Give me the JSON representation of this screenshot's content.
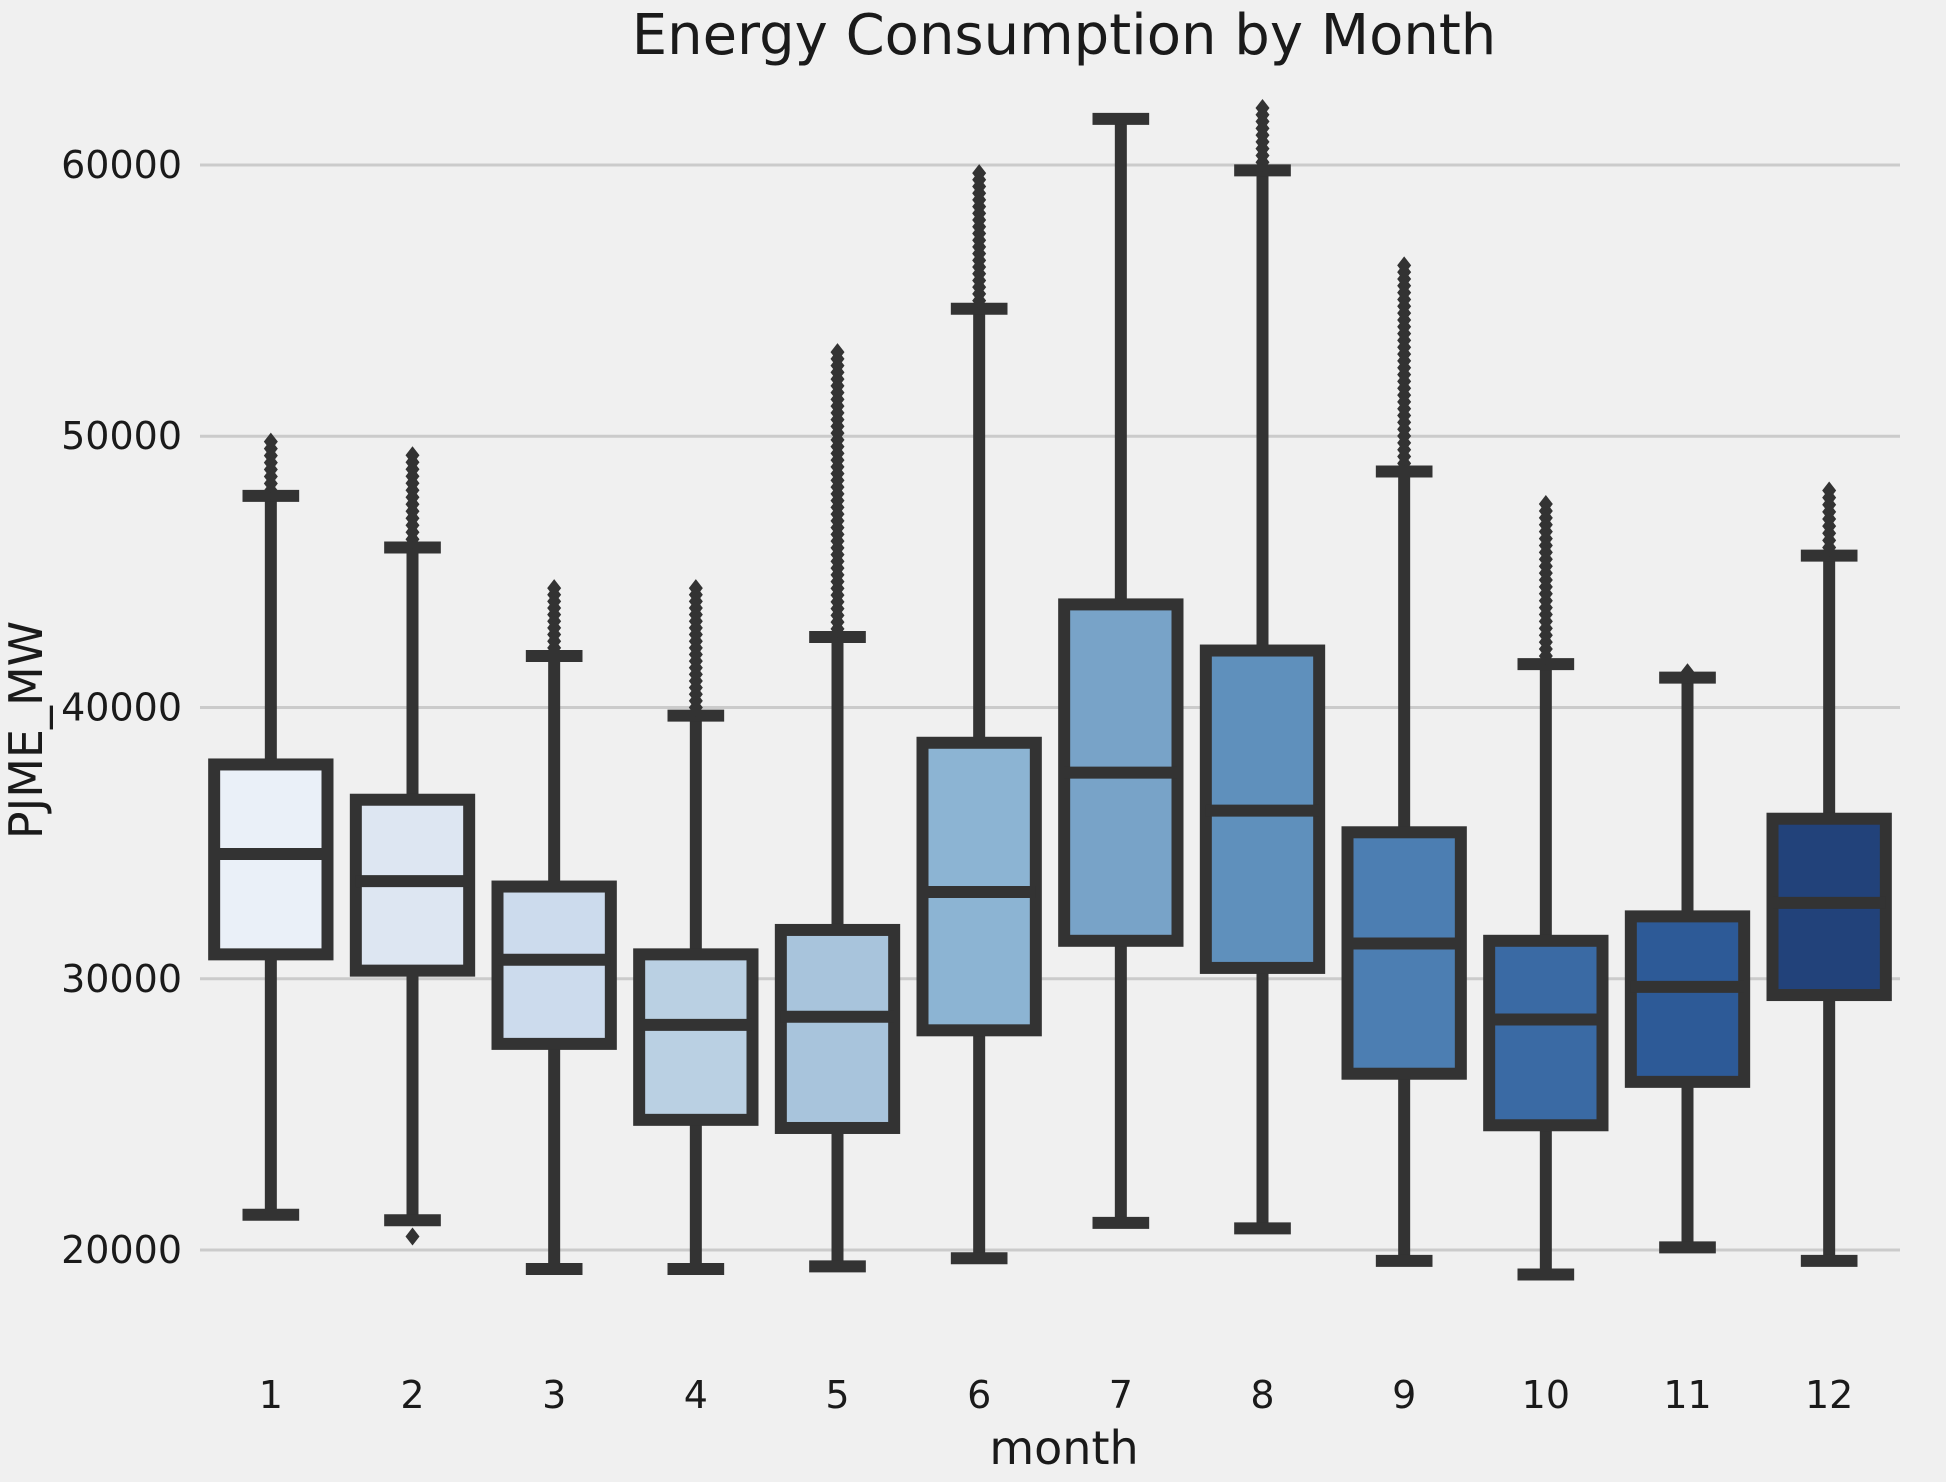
{
  "chart_data": {
    "type": "box",
    "title": "Energy Consumption by Month",
    "xlabel": "month",
    "ylabel": "PJME_MW",
    "ylim": [
      16500,
      63500
    ],
    "yticks": [
      20000,
      30000,
      40000,
      50000,
      60000
    ],
    "yticklabels": [
      "20000",
      "30000",
      "40000",
      "50000",
      "60000"
    ],
    "grid": "horizontal",
    "categories": [
      "1",
      "2",
      "3",
      "4",
      "5",
      "6",
      "7",
      "8",
      "9",
      "10",
      "11",
      "12"
    ],
    "colors": [
      "#eaf0f8",
      "#dde6f2",
      "#ccdbed",
      "#bad0e3",
      "#a8c4dc",
      "#8cb4d3",
      "#78a3c8",
      "#5f90bc",
      "#4c7eb2",
      "#3a6aa4",
      "#2d5a97",
      "#22427a"
    ],
    "edge_color": "#333333",
    "boxes": [
      {
        "month": "1",
        "whislo": 21300,
        "q1": 30900,
        "med": 34600,
        "q3": 37900,
        "whishi": 47800,
        "fliers_range": [
          48000,
          49800
        ]
      },
      {
        "month": "2",
        "whislo": 21100,
        "q1": 30300,
        "med": 33600,
        "q3": 36600,
        "whishi": 45900,
        "fliers_range": [
          46200,
          49300
        ],
        "fliers_low": [
          20500
        ]
      },
      {
        "month": "3",
        "whislo": 19300,
        "q1": 27600,
        "med": 30700,
        "q3": 33400,
        "whishi": 41900,
        "fliers_range": [
          42200,
          44400
        ]
      },
      {
        "month": "4",
        "whislo": 19300,
        "q1": 24800,
        "med": 28300,
        "q3": 30900,
        "whishi": 39700,
        "fliers_range": [
          40000,
          44400
        ]
      },
      {
        "month": "5",
        "whislo": 19400,
        "q1": 24500,
        "med": 28600,
        "q3": 31800,
        "whishi": 42600,
        "fliers_range": [
          42900,
          53100
        ]
      },
      {
        "month": "6",
        "whislo": 19700,
        "q1": 28100,
        "med": 33200,
        "q3": 38700,
        "whishi": 54700,
        "fliers_range": [
          55000,
          59700
        ]
      },
      {
        "month": "7",
        "whislo": 21000,
        "q1": 31400,
        "med": 37600,
        "q3": 43800,
        "whishi": 61700
      },
      {
        "month": "8",
        "whislo": 20800,
        "q1": 30400,
        "med": 36200,
        "q3": 42100,
        "whishi": 59800,
        "fliers_range": [
          60100,
          62100
        ]
      },
      {
        "month": "9",
        "whislo": 19600,
        "q1": 26500,
        "med": 31300,
        "q3": 35400,
        "whishi": 48700,
        "fliers_range": [
          49000,
          56300
        ]
      },
      {
        "month": "10",
        "whislo": 19100,
        "q1": 24600,
        "med": 28500,
        "q3": 31400,
        "whishi": 41600,
        "fliers_range": [
          41900,
          47500
        ]
      },
      {
        "month": "11",
        "whislo": 20100,
        "q1": 26200,
        "med": 29700,
        "q3": 32300,
        "whishi": 41100,
        "fliers_range": [
          41300,
          41300
        ]
      },
      {
        "month": "12",
        "whislo": 19600,
        "q1": 29400,
        "med": 32800,
        "q3": 35900,
        "whishi": 45600,
        "fliers_range": [
          45900,
          48000
        ]
      }
    ]
  }
}
